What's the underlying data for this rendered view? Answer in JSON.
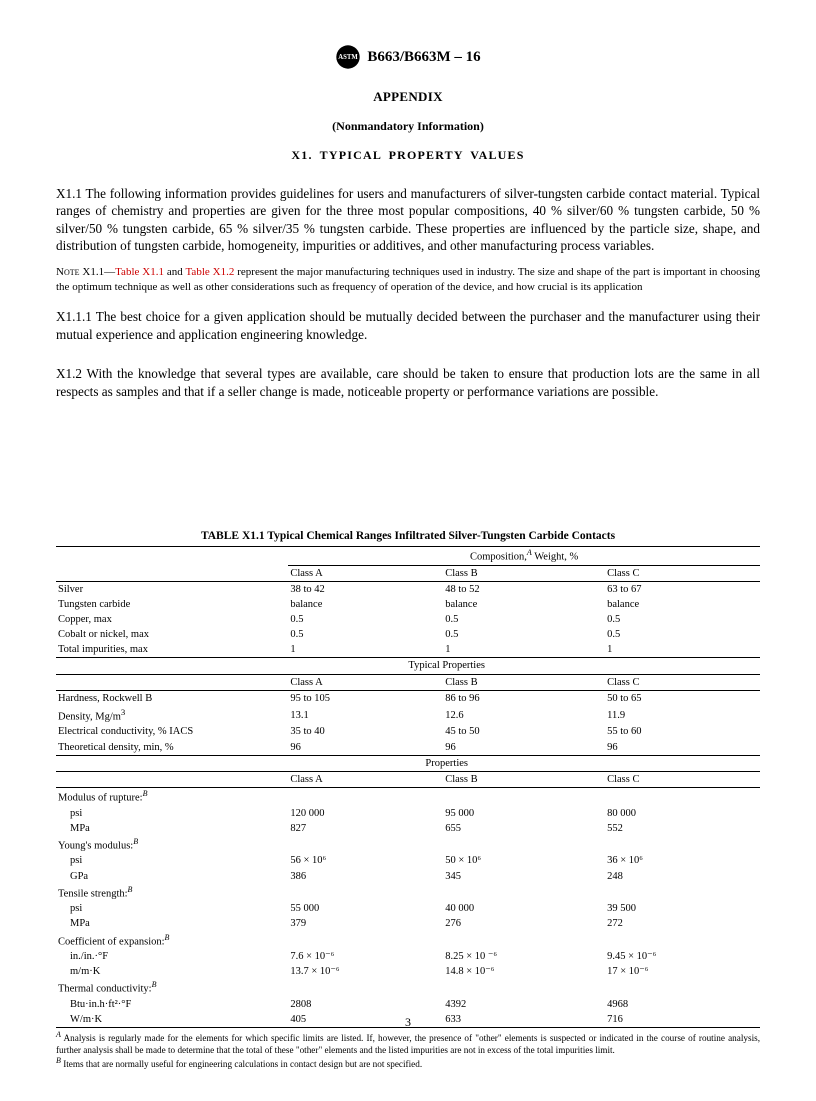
{
  "header": {
    "designation": "B663/B663M – 16",
    "appendix_label": "APPENDIX",
    "nonmandatory": "(Nonmandatory Information)",
    "section_heading": "X1.  TYPICAL  PROPERTY  VALUES"
  },
  "paragraphs": {
    "p1": "X1.1  The following information provides guidelines for users and manufacturers of silver-tungsten carbide contact material. Typical ranges of chemistry and properties are given for the three most popular compositions, 40 % silver/60 % tungsten carbide, 50 % silver/50 % tungsten carbide, 65 % silver/35 % tungsten carbide. These properties are influenced by the particle size, shape, and distribution of tungsten carbide, homogeneity, impurities or additives, and other manufacturing process variables.",
    "note_lead": "Note",
    "note_num": " X1.1—",
    "note_ref1": "Table X1.1",
    "note_mid": " and ",
    "note_ref2": "Table X1.2",
    "note_tail": " represent the major manufacturing techniques used in industry. The size and shape of the part is important in choosing the optimum technique as well as other considerations such as frequency of operation of the device, and how crucial is its application",
    "p2": "X1.1.1  The best choice for a given application should be mutually decided between the purchaser and the manufacturer using their mutual experience and application engineering knowledge.",
    "p3": "X1.2  With the knowledge that several types are available, care should be taken to ensure that production lots are the same in all respects as samples and that if a seller change is made, noticeable property or performance variations are possible."
  },
  "table": {
    "title": "TABLE X1.1 Typical Chemical Ranges Infiltrated Silver-Tungsten Carbide Contacts",
    "comp_header": "Composition,",
    "comp_sup": "A",
    "comp_tail": " Weight, %",
    "class_a": "Class A",
    "class_b": "Class B",
    "class_c": "Class C",
    "section_typical": "Typical Properties",
    "section_props": "Properties",
    "rows_composition": [
      {
        "label": "Silver",
        "a": "38 to 42",
        "b": "48 to 52",
        "c": "63 to 67"
      },
      {
        "label": "Tungsten carbide",
        "a": "balance",
        "b": "balance",
        "c": "balance"
      },
      {
        "label": "Copper, max",
        "a": "0.5",
        "b": "0.5",
        "c": "0.5"
      },
      {
        "label": "Cobalt or nickel, max",
        "a": "0.5",
        "b": "0.5",
        "c": "0.5"
      },
      {
        "label": "Total impurities, max",
        "a": "1",
        "b": "1",
        "c": "1"
      }
    ],
    "rows_typical": [
      {
        "label": "Hardness, Rockwell B",
        "a": "95 to 105",
        "b": "86 to 96",
        "c": "50 to 65"
      },
      {
        "label": "Density, Mg/m",
        "sup": "3",
        "a": "13.1",
        "b": "12.6",
        "c": "11.9"
      },
      {
        "label": "Electrical conductivity, % IACS",
        "a": "35 to 40",
        "b": "45 to 50",
        "c": "55 to 60"
      },
      {
        "label": "Theoretical density, min, %",
        "a": "96",
        "b": "96",
        "c": "96"
      }
    ],
    "rows_props": [
      {
        "label": "Modulus of rupture:",
        "fn": "B"
      },
      {
        "label": "psi",
        "indent": true,
        "a": "120 000",
        "b": "95 000",
        "c": "80 000"
      },
      {
        "label": "MPa",
        "indent": true,
        "a": "827",
        "b": "655",
        "c": "552"
      },
      {
        "label": "Young's modulus:",
        "fn": "B"
      },
      {
        "label": "psi",
        "indent": true,
        "a": "56 × 10⁶",
        "b": "50 × 10⁶",
        "c": "36 × 10⁶"
      },
      {
        "label": "GPa",
        "indent": true,
        "a": "386",
        "b": "345",
        "c": "248"
      },
      {
        "label": "Tensile strength:",
        "fn": "B"
      },
      {
        "label": "psi",
        "indent": true,
        "a": "55 000",
        "b": "40 000",
        "c": "39 500"
      },
      {
        "label": "MPa",
        "indent": true,
        "a": "379",
        "b": "276",
        "c": "272"
      },
      {
        "label": "Coefficient of expansion:",
        "fn": "B"
      },
      {
        "label": "in./in.·°F",
        "indent": true,
        "a": "7.6 × 10⁻⁶",
        "b": "8.25 × 10 ⁻⁶",
        "c": "9.45 × 10⁻⁶"
      },
      {
        "label": "m/m·K",
        "indent": true,
        "a": "13.7 × 10⁻⁶",
        "b": "14.8 × 10⁻⁶",
        "c": "17 × 10⁻⁶"
      },
      {
        "label": "Thermal conductivity:",
        "fn": "B"
      },
      {
        "label": "Btu·in.h·ft²·°F",
        "indent": true,
        "a": "2808",
        "b": "4392",
        "c": "4968"
      },
      {
        "label": "W/m·K",
        "indent": true,
        "a": "405",
        "b": "633",
        "c": "716"
      }
    ],
    "footnote_a_lead": "A",
    "footnote_a": " Analysis is regularly made for the elements for which specific limits are listed. If, however, the presence of \"other\" elements is suspected or indicated in the course of routine analysis, further analysis shall be made to determine that the total of these \"other\" elements and the listed impurities are not in excess of the total impurities limit.",
    "footnote_b_lead": "B",
    "footnote_b": " Items that are normally useful for engineering calculations in contact design but are not specified."
  },
  "page_number": "3"
}
